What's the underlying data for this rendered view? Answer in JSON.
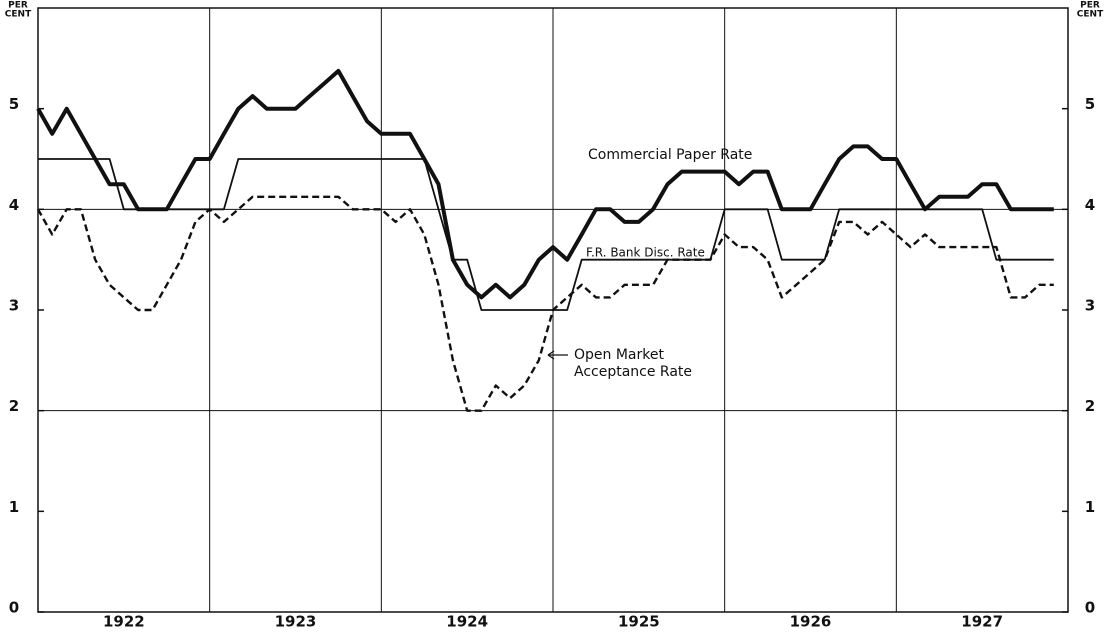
{
  "chart_data": {
    "type": "line",
    "ylabel": [
      "PER",
      "CENT"
    ],
    "x": [
      1922,
      1922.083,
      1922.167,
      1922.25,
      1922.333,
      1922.417,
      1922.5,
      1922.583,
      1922.667,
      1922.75,
      1922.833,
      1922.917,
      1923,
      1923.083,
      1923.167,
      1923.25,
      1923.333,
      1923.417,
      1923.5,
      1923.583,
      1923.667,
      1923.75,
      1923.833,
      1923.917,
      1924,
      1924.083,
      1924.167,
      1924.25,
      1924.333,
      1924.417,
      1924.5,
      1924.583,
      1924.667,
      1924.75,
      1924.833,
      1924.917,
      1925,
      1925.083,
      1925.167,
      1925.25,
      1925.333,
      1925.417,
      1925.5,
      1925.583,
      1925.667,
      1925.75,
      1925.833,
      1925.917,
      1926,
      1926.083,
      1926.167,
      1926.25,
      1926.333,
      1926.417,
      1926.5,
      1926.583,
      1926.667,
      1926.75,
      1926.833,
      1926.917,
      1927,
      1927.083,
      1927.167,
      1927.25,
      1927.333,
      1927.417,
      1927.5,
      1927.583,
      1927.667,
      1927.75,
      1927.833,
      1927.917
    ],
    "series": [
      {
        "name": "Commercial Paper Rate",
        "color": "#111",
        "width": 4,
        "dash": "none",
        "values": [
          5,
          4.75,
          5,
          4.75,
          4.5,
          4.25,
          4.25,
          4,
          4,
          4,
          4.25,
          4.5,
          4.5,
          4.75,
          5,
          5.125,
          5,
          5,
          5,
          5.125,
          5.25,
          5.375,
          5.125,
          4.875,
          4.75,
          4.75,
          4.75,
          4.5,
          4.25,
          3.5,
          3.25,
          3.125,
          3.25,
          3.125,
          3.25,
          3.5,
          3.625,
          3.5,
          3.75,
          4,
          4,
          3.875,
          3.875,
          4,
          4.25,
          4.375,
          4.375,
          4.375,
          4.375,
          4.25,
          4.375,
          4.375,
          4,
          4,
          4,
          4.25,
          4.5,
          4.625,
          4.625,
          4.5,
          4.5,
          4.25,
          4,
          4.125,
          4.125,
          4.125,
          4.25,
          4.25,
          4,
          4,
          4,
          4
        ]
      },
      {
        "name": "F.R. Bank Disc. Rate",
        "color": "#111",
        "width": 1.8,
        "dash": "none",
        "values": [
          4.5,
          4.5,
          4.5,
          4.5,
          4.5,
          4.5,
          4,
          4,
          4,
          4,
          4,
          4,
          4,
          4,
          4.5,
          4.5,
          4.5,
          4.5,
          4.5,
          4.5,
          4.5,
          4.5,
          4.5,
          4.5,
          4.5,
          4.5,
          4.5,
          4.5,
          4,
          3.5,
          3.5,
          3,
          3,
          3,
          3,
          3,
          3,
          3,
          3.5,
          3.5,
          3.5,
          3.5,
          3.5,
          3.5,
          3.5,
          3.5,
          3.5,
          3.5,
          4,
          4,
          4,
          4,
          3.5,
          3.5,
          3.5,
          3.5,
          4,
          4,
          4,
          4,
          4,
          4,
          4,
          4,
          4,
          4,
          4,
          3.5,
          3.5,
          3.5,
          3.5,
          3.5
        ]
      },
      {
        "name": "Open Market Acceptance Rate",
        "color": "#111",
        "width": 2.4,
        "dash": "7 4",
        "values": [
          4,
          3.75,
          4,
          4,
          3.5,
          3.25,
          3.125,
          3,
          3,
          3.25,
          3.5,
          3.875,
          4,
          3.875,
          4,
          4.125,
          4.125,
          4.125,
          4.125,
          4.125,
          4.125,
          4.125,
          4,
          4,
          4,
          3.875,
          4,
          3.75,
          3.25,
          2.5,
          2,
          2,
          2.25,
          2.125,
          2.25,
          2.5,
          3,
          3.125,
          3.25,
          3.125,
          3.125,
          3.25,
          3.25,
          3.25,
          3.5,
          3.5,
          3.5,
          3.5,
          3.75,
          3.625,
          3.625,
          3.5,
          3.125,
          3.25,
          3.375,
          3.5,
          3.875,
          3.875,
          3.75,
          3.875,
          3.75,
          3.625,
          3.75,
          3.625,
          3.625,
          3.625,
          3.625,
          3.625,
          3.125,
          3.125,
          3.25,
          3.25
        ]
      }
    ],
    "annotations": [
      {
        "lines": [
          "Commercial Paper Rate"
        ]
      },
      {
        "lines": [
          "F.R. Bank Disc. Rate"
        ]
      },
      {
        "lines": [
          "Open Market",
          "Acceptance Rate"
        ]
      }
    ],
    "xlim": [
      1922,
      1928
    ],
    "xticks": [
      {
        "value": 1922.5,
        "label": "1922"
      },
      {
        "value": 1923.5,
        "label": "1923"
      },
      {
        "value": 1924.5,
        "label": "1924"
      },
      {
        "value": 1925.5,
        "label": "1925"
      },
      {
        "value": 1926.5,
        "label": "1926"
      },
      {
        "value": 1927.5,
        "label": "1927"
      }
    ],
    "xgrid": [
      1923,
      1924,
      1925,
      1926,
      1927
    ],
    "ylim": [
      0,
      6
    ],
    "yticks": [
      0,
      1,
      2,
      3,
      4,
      5
    ],
    "ygrid": [
      2,
      4
    ]
  }
}
